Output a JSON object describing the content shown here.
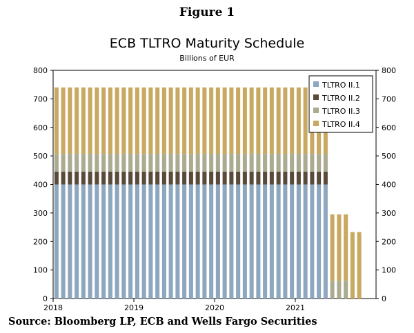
{
  "figure_label": "Figure 1",
  "source": "Source: Bloomberg LP, ECB and Wells Fargo Securities",
  "chart_data": {
    "type": "bar",
    "stacked": true,
    "title": "ECB TLTRO Maturity Schedule",
    "subtitle": "Billions of EUR",
    "ylim": [
      0,
      800
    ],
    "y_ticks": [
      0,
      100,
      200,
      300,
      400,
      500,
      600,
      700,
      800
    ],
    "x_tick_labels": [
      "2018",
      "2019",
      "2020",
      "2021"
    ],
    "x_range_months": [
      0,
      48
    ],
    "legend_position": "top-right",
    "colors": [
      "#8DA7BF",
      "#5A4A3A",
      "#ABAB92",
      "#C9A961"
    ],
    "bar_months": [
      1,
      2,
      3,
      4,
      5,
      6,
      7,
      8,
      9,
      10,
      11,
      12,
      13,
      14,
      15,
      16,
      17,
      18,
      19,
      20,
      21,
      22,
      23,
      24,
      25,
      26,
      27,
      28,
      29,
      30,
      31,
      32,
      33,
      34,
      35,
      36,
      37,
      38,
      39,
      40,
      41,
      42,
      43,
      44,
      45,
      46
    ],
    "series": [
      {
        "name": "TLTRO II.1",
        "values": [
          400,
          400,
          400,
          400,
          400,
          400,
          400,
          400,
          400,
          400,
          400,
          400,
          400,
          400,
          400,
          400,
          400,
          400,
          400,
          400,
          400,
          400,
          400,
          400,
          400,
          400,
          400,
          400,
          400,
          400,
          400,
          400,
          400,
          400,
          400,
          400,
          400,
          400,
          400,
          400,
          400,
          0,
          0,
          0,
          0,
          0
        ]
      },
      {
        "name": "TLTRO II.2",
        "values": [
          45,
          45,
          45,
          45,
          45,
          45,
          45,
          45,
          45,
          45,
          45,
          45,
          45,
          45,
          45,
          45,
          45,
          45,
          45,
          45,
          45,
          45,
          45,
          45,
          45,
          45,
          45,
          45,
          45,
          45,
          45,
          45,
          45,
          45,
          45,
          45,
          45,
          45,
          45,
          45,
          45,
          0,
          0,
          0,
          0,
          0
        ]
      },
      {
        "name": "TLTRO II.3",
        "values": [
          62,
          62,
          62,
          62,
          62,
          62,
          62,
          62,
          62,
          62,
          62,
          62,
          62,
          62,
          62,
          62,
          62,
          62,
          62,
          62,
          62,
          62,
          62,
          62,
          62,
          62,
          62,
          62,
          62,
          62,
          62,
          62,
          62,
          62,
          62,
          62,
          62,
          62,
          62,
          62,
          62,
          62,
          62,
          62,
          0,
          0
        ]
      },
      {
        "name": "TLTRO II.4",
        "values": [
          233,
          233,
          233,
          233,
          233,
          233,
          233,
          233,
          233,
          233,
          233,
          233,
          233,
          233,
          233,
          233,
          233,
          233,
          233,
          233,
          233,
          233,
          233,
          233,
          233,
          233,
          233,
          233,
          233,
          233,
          233,
          233,
          233,
          233,
          233,
          233,
          233,
          233,
          233,
          233,
          233,
          233,
          233,
          233,
          233,
          233
        ]
      }
    ]
  }
}
